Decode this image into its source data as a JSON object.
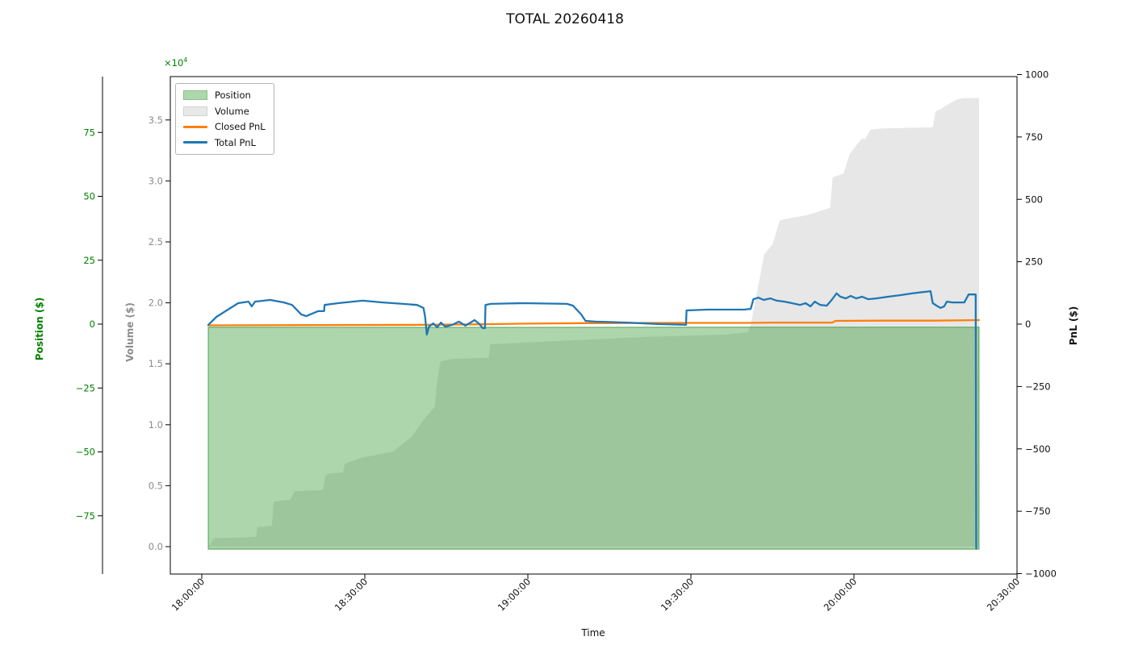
{
  "chart_data": {
    "type": "area+line time series",
    "title": "TOTAL 20260418",
    "axes": {
      "x": {
        "label": "Time",
        "tick_labels": [
          "18:00:00",
          "18:30:00",
          "19:00:00",
          "19:30:00",
          "20:00:00",
          "20:30:00"
        ],
        "tick_interval_minutes": 30,
        "range_minutes_from_1800": [
          0,
          150
        ]
      },
      "position": {
        "label": "Position ($)",
        "color": "#008000",
        "tick_labels": [
          "75",
          "50",
          "25",
          "0",
          "−25",
          "−50",
          "−75"
        ],
        "tick_values": [
          75,
          50,
          25,
          0,
          -25,
          -50,
          -75
        ],
        "range": [
          -88,
          88
        ]
      },
      "volume": {
        "label": "Volume ($)",
        "color": "#8c8c8c",
        "offset_base": "×10",
        "offset_exponent": "4",
        "tick_labels": [
          "3.5",
          "3.0",
          "2.5",
          "2.0",
          "1.5",
          "1.0",
          "0.5",
          "0.0"
        ],
        "tick_values": [
          35000,
          30000,
          25000,
          20000,
          15000,
          10000,
          5000,
          0
        ],
        "range": [
          0,
          38500
        ]
      },
      "pnl": {
        "label": "PnL ($)",
        "color": "#111111",
        "tick_labels": [
          "1000",
          "750",
          "500",
          "250",
          "0",
          "−250",
          "−500",
          "−750",
          "−1000"
        ],
        "tick_values": [
          1000,
          750,
          500,
          250,
          0,
          -250,
          -500,
          -750,
          -1000
        ],
        "range": [
          -1000,
          1000
        ]
      }
    },
    "legend": {
      "position": "upper-left",
      "items": [
        {
          "label": "Position",
          "swatch": "patch",
          "color": "#aed7ae",
          "border": "#8cbf8c"
        },
        {
          "label": "Volume",
          "swatch": "patch",
          "color": "#e8e8e8",
          "border": "#d2d2d2"
        },
        {
          "label": "Closed PnL",
          "swatch": "line",
          "color": "#ff7f0e"
        },
        {
          "label": "Total PnL",
          "swatch": "line",
          "color": "#1f77b4"
        }
      ]
    },
    "series": [
      {
        "name": "Volume",
        "type": "area",
        "axis": "volume",
        "color": "#d3d3d3",
        "alpha": 0.55,
        "baseline": 0,
        "points": [
          [
            1.2,
            0
          ],
          [
            1.5,
            150
          ],
          [
            2.2,
            700
          ],
          [
            7,
            750
          ],
          [
            10,
            800
          ],
          [
            10.2,
            1600
          ],
          [
            12.9,
            1700
          ],
          [
            13.2,
            3700
          ],
          [
            16.3,
            3850
          ],
          [
            17.1,
            4550
          ],
          [
            22.3,
            4650
          ],
          [
            22.7,
            5800
          ],
          [
            23.5,
            6000
          ],
          [
            26,
            6100
          ],
          [
            26.3,
            6800
          ],
          [
            29.3,
            7280
          ],
          [
            35.2,
            7800
          ],
          [
            38.6,
            9000
          ],
          [
            40.8,
            10400
          ],
          [
            42.9,
            11500
          ],
          [
            43.2,
            13200
          ],
          [
            43.9,
            15200
          ],
          [
            46,
            15400
          ],
          [
            52.8,
            15500
          ],
          [
            53.1,
            16600
          ],
          [
            66.8,
            16900
          ],
          [
            81.7,
            17200
          ],
          [
            96.5,
            17400
          ],
          [
            100.5,
            17600
          ],
          [
            101,
            18200
          ],
          [
            101.8,
            20000
          ],
          [
            103.5,
            24000
          ],
          [
            105,
            24800
          ],
          [
            105.3,
            25200
          ],
          [
            106.3,
            26700
          ],
          [
            106.6,
            26800
          ],
          [
            111.4,
            27200
          ],
          [
            115.6,
            27800
          ],
          [
            116.1,
            30300
          ],
          [
            118.1,
            30600
          ],
          [
            119.2,
            32200
          ],
          [
            120.4,
            32900
          ],
          [
            121.5,
            33500
          ],
          [
            122,
            33400
          ],
          [
            123,
            34200
          ],
          [
            125.1,
            34300
          ],
          [
            134.5,
            34400
          ],
          [
            135,
            35700
          ],
          [
            136,
            35900
          ],
          [
            136.6,
            36100
          ],
          [
            139,
            36700
          ],
          [
            140,
            36800
          ],
          [
            143,
            36800
          ]
        ]
      },
      {
        "name": "Position",
        "type": "area",
        "axis": "position",
        "color": "#008000",
        "alpha": 0.32,
        "baseline": -88,
        "edge_color": "#4f9e4f",
        "points": [
          [
            1.2,
            -1.2
          ],
          [
            50,
            -1.3
          ],
          [
            100,
            -1.2
          ],
          [
            143,
            -1.2
          ]
        ]
      },
      {
        "name": "Closed PnL",
        "type": "line",
        "axis": "pnl",
        "color": "#ff7f0e",
        "width": 2.3,
        "points": [
          [
            1.2,
            -5
          ],
          [
            20,
            -4
          ],
          [
            40,
            -3
          ],
          [
            50,
            -1
          ],
          [
            60,
            2
          ],
          [
            70,
            4
          ],
          [
            85,
            5
          ],
          [
            100,
            5
          ],
          [
            105,
            6
          ],
          [
            116,
            6
          ],
          [
            116.6,
            13
          ],
          [
            125,
            14
          ],
          [
            135,
            14
          ],
          [
            143,
            16
          ]
        ]
      },
      {
        "name": "Total PnL",
        "type": "line",
        "axis": "pnl",
        "color": "#1f77b4",
        "width": 2.3,
        "points": [
          [
            1.2,
            -3
          ],
          [
            2.7,
            29
          ],
          [
            6.7,
            84
          ],
          [
            8.6,
            90
          ],
          [
            9.2,
            71
          ],
          [
            9.8,
            90
          ],
          [
            12.6,
            97
          ],
          [
            15.1,
            87
          ],
          [
            16.6,
            77
          ],
          [
            18.3,
            39
          ],
          [
            19.2,
            32
          ],
          [
            21.4,
            52
          ],
          [
            22.5,
            52
          ],
          [
            22.6,
            77
          ],
          [
            25.1,
            84
          ],
          [
            29.6,
            94
          ],
          [
            33.3,
            87
          ],
          [
            37,
            81
          ],
          [
            39.6,
            77
          ],
          [
            40.8,
            65
          ],
          [
            41.1,
            29
          ],
          [
            41.4,
            -42
          ],
          [
            41.8,
            -10
          ],
          [
            42.6,
            3
          ],
          [
            43.3,
            -13
          ],
          [
            44,
            6
          ],
          [
            44.8,
            -10
          ],
          [
            46.1,
            -3
          ],
          [
            47.3,
            10
          ],
          [
            48.5,
            -6
          ],
          [
            50.2,
            16
          ],
          [
            51.1,
            0
          ],
          [
            51.7,
            -16
          ],
          [
            52.1,
            -16
          ],
          [
            52.2,
            77
          ],
          [
            53.2,
            81
          ],
          [
            59.1,
            84
          ],
          [
            67.2,
            81
          ],
          [
            68.3,
            74
          ],
          [
            69.8,
            39
          ],
          [
            70.6,
            13
          ],
          [
            72.4,
            10
          ],
          [
            78.3,
            6
          ],
          [
            84.2,
            0
          ],
          [
            89.1,
            -3
          ],
          [
            89.2,
            55
          ],
          [
            93.1,
            58
          ],
          [
            99.8,
            58
          ],
          [
            101,
            61
          ],
          [
            101.5,
            100
          ],
          [
            102.4,
            106
          ],
          [
            103.4,
            97
          ],
          [
            104.6,
            103
          ],
          [
            105.8,
            94
          ],
          [
            107.2,
            90
          ],
          [
            108.6,
            84
          ],
          [
            110.1,
            77
          ],
          [
            111.1,
            84
          ],
          [
            112,
            71
          ],
          [
            112.8,
            90
          ],
          [
            113.8,
            77
          ],
          [
            115,
            74
          ],
          [
            115.9,
            97
          ],
          [
            116.8,
            123
          ],
          [
            117.5,
            110
          ],
          [
            118.5,
            103
          ],
          [
            119.4,
            113
          ],
          [
            120.4,
            103
          ],
          [
            121.5,
            110
          ],
          [
            122.6,
            100
          ],
          [
            124.1,
            103
          ],
          [
            126.3,
            110
          ],
          [
            128.5,
            116
          ],
          [
            130.7,
            123
          ],
          [
            132.9,
            129
          ],
          [
            134.1,
            132
          ],
          [
            134.5,
            84
          ],
          [
            135.2,
            74
          ],
          [
            135.9,
            65
          ],
          [
            136.6,
            71
          ],
          [
            137.1,
            90
          ],
          [
            138.1,
            87
          ],
          [
            140.3,
            87
          ],
          [
            141.1,
            119
          ],
          [
            142.4,
            119
          ],
          [
            142.5,
            -900
          ]
        ]
      }
    ]
  }
}
